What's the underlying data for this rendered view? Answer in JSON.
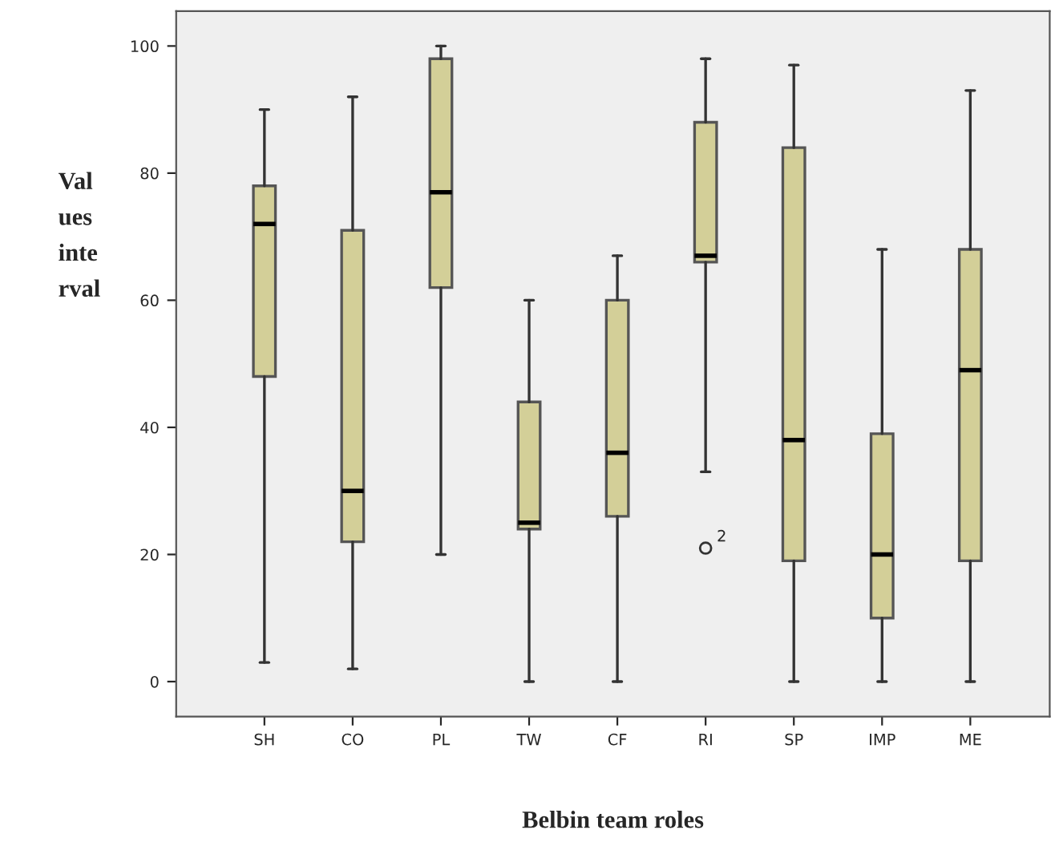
{
  "chart_data": {
    "type": "box",
    "xlabel": "Belbin team roles",
    "ylabel": "Val\nues\ninte\nrval",
    "categories": [
      "SH",
      "CO",
      "PL",
      "TW",
      "CF",
      "RI",
      "SP",
      "IMP",
      "ME"
    ],
    "boxes": [
      {
        "low": 3,
        "q1": 48,
        "median": 72,
        "q3": 78,
        "high": 90
      },
      {
        "low": 2,
        "q1": 22,
        "median": 30,
        "q3": 71,
        "high": 92
      },
      {
        "low": 20,
        "q1": 62,
        "median": 77,
        "q3": 98,
        "high": 100
      },
      {
        "low": 0,
        "q1": 24,
        "median": 25,
        "q3": 44,
        "high": 60
      },
      {
        "low": 0,
        "q1": 26,
        "median": 36,
        "q3": 60,
        "high": 67
      },
      {
        "low": 33,
        "q1": 66,
        "median": 67,
        "q3": 88,
        "high": 98,
        "outliers": [
          21
        ]
      },
      {
        "low": 0,
        "q1": 19,
        "median": 38,
        "q3": 84,
        "high": 97
      },
      {
        "low": 0,
        "q1": 10,
        "median": 20,
        "q3": 39,
        "high": 68
      },
      {
        "low": 0,
        "q1": 19,
        "median": 49,
        "q3": 68,
        "high": 93
      }
    ],
    "color": "#d3cf98",
    "annotations": [
      "2"
    ],
    "ylim": [
      -5.5,
      105.5
    ],
    "yticks": [
      0,
      20,
      40,
      60,
      80,
      100
    ],
    "grid": false,
    "legend": false
  }
}
